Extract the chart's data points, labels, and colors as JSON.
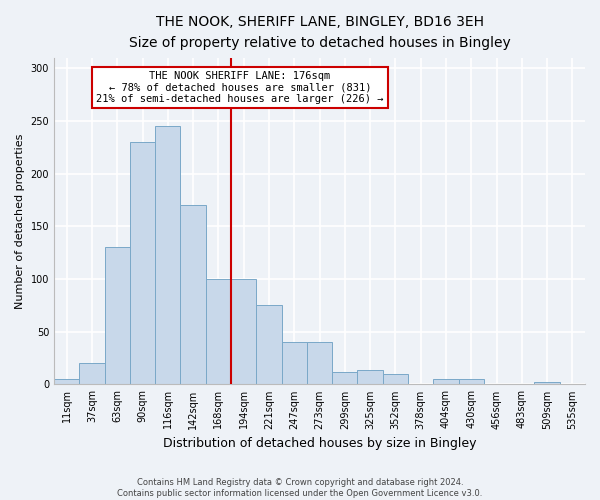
{
  "title_line1": "THE NOOK, SHERIFF LANE, BINGLEY, BD16 3EH",
  "title_line2": "Size of property relative to detached houses in Bingley",
  "xlabel": "Distribution of detached houses by size in Bingley",
  "ylabel": "Number of detached properties",
  "footnote": "Contains HM Land Registry data © Crown copyright and database right 2024.\nContains public sector information licensed under the Open Government Licence v3.0.",
  "bin_labels": [
    "11sqm",
    "37sqm",
    "63sqm",
    "90sqm",
    "116sqm",
    "142sqm",
    "168sqm",
    "194sqm",
    "221sqm",
    "247sqm",
    "273sqm",
    "299sqm",
    "325sqm",
    "352sqm",
    "378sqm",
    "404sqm",
    "430sqm",
    "456sqm",
    "483sqm",
    "509sqm",
    "535sqm"
  ],
  "bar_heights": [
    5,
    20,
    130,
    230,
    245,
    170,
    100,
    100,
    75,
    40,
    40,
    12,
    14,
    10,
    0,
    5,
    5,
    0,
    0,
    2,
    0
  ],
  "vline_x_index": 6.5,
  "annotation_line1": "THE NOOK SHERIFF LANE: 176sqm",
  "annotation_line2": "← 78% of detached houses are smaller (831)",
  "annotation_line3": "21% of semi-detached houses are larger (226) →",
  "bar_color": "#c8d8ea",
  "bar_edge_color": "#7aa8c8",
  "vline_color": "#cc0000",
  "annotation_box_facecolor": "#ffffff",
  "annotation_box_edgecolor": "#cc0000",
  "background_color": "#eef2f7",
  "grid_color": "#ffffff",
  "ylim": [
    0,
    310
  ],
  "yticks": [
    0,
    50,
    100,
    150,
    200,
    250,
    300
  ],
  "title1_fontsize": 10,
  "title2_fontsize": 9,
  "ylabel_fontsize": 8,
  "xlabel_fontsize": 9,
  "tick_fontsize": 7,
  "footnote_fontsize": 6
}
